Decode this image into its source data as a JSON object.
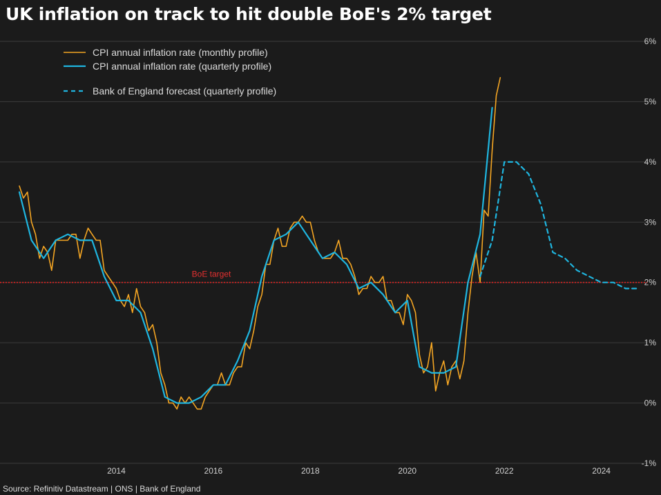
{
  "chart_data": {
    "type": "line",
    "title": "UK inflation on track to hit double BoE's 2% target",
    "xlabel": "",
    "ylabel": "",
    "x_tick_labels": [
      "2014",
      "2016",
      "2018",
      "2020",
      "2022",
      "2024"
    ],
    "y_tick_labels": [
      "6%",
      "5%",
      "4%",
      "3%",
      "2%",
      "1%",
      "0%",
      "-1%"
    ],
    "ylim": [
      -1,
      6
    ],
    "xlim": [
      "2012-01",
      "2024-12"
    ],
    "grid": "horizontal",
    "legend_position": "top-left",
    "reference_line": {
      "label": "BoE target",
      "value": 2,
      "color": "#e0201f"
    },
    "source": "Source: Refinitiv Datastream | ONS | Bank of England",
    "series": [
      {
        "name": "CPI annual inflation rate (monthly profile)",
        "color": "#f5a623",
        "style": "solid",
        "points": [
          [
            "2012-01",
            3.6
          ],
          [
            "2012-02",
            3.4
          ],
          [
            "2012-03",
            3.5
          ],
          [
            "2012-04",
            3.0
          ],
          [
            "2012-05",
            2.8
          ],
          [
            "2012-06",
            2.4
          ],
          [
            "2012-07",
            2.6
          ],
          [
            "2012-08",
            2.5
          ],
          [
            "2012-09",
            2.2
          ],
          [
            "2012-10",
            2.7
          ],
          [
            "2012-11",
            2.7
          ],
          [
            "2012-12",
            2.7
          ],
          [
            "2013-01",
            2.7
          ],
          [
            "2013-02",
            2.8
          ],
          [
            "2013-03",
            2.8
          ],
          [
            "2013-04",
            2.4
          ],
          [
            "2013-05",
            2.7
          ],
          [
            "2013-06",
            2.9
          ],
          [
            "2013-07",
            2.8
          ],
          [
            "2013-08",
            2.7
          ],
          [
            "2013-09",
            2.7
          ],
          [
            "2013-10",
            2.2
          ],
          [
            "2013-11",
            2.1
          ],
          [
            "2013-12",
            2.0
          ],
          [
            "2014-01",
            1.9
          ],
          [
            "2014-02",
            1.7
          ],
          [
            "2014-03",
            1.6
          ],
          [
            "2014-04",
            1.8
          ],
          [
            "2014-05",
            1.5
          ],
          [
            "2014-06",
            1.9
          ],
          [
            "2014-07",
            1.6
          ],
          [
            "2014-08",
            1.5
          ],
          [
            "2014-09",
            1.2
          ],
          [
            "2014-10",
            1.3
          ],
          [
            "2014-11",
            1.0
          ],
          [
            "2014-12",
            0.5
          ],
          [
            "2015-01",
            0.3
          ],
          [
            "2015-02",
            0.0
          ],
          [
            "2015-03",
            0.0
          ],
          [
            "2015-04",
            -0.1
          ],
          [
            "2015-05",
            0.1
          ],
          [
            "2015-06",
            0.0
          ],
          [
            "2015-07",
            0.1
          ],
          [
            "2015-08",
            0.0
          ],
          [
            "2015-09",
            -0.1
          ],
          [
            "2015-10",
            -0.1
          ],
          [
            "2015-11",
            0.1
          ],
          [
            "2015-12",
            0.2
          ],
          [
            "2016-01",
            0.3
          ],
          [
            "2016-02",
            0.3
          ],
          [
            "2016-03",
            0.5
          ],
          [
            "2016-04",
            0.3
          ],
          [
            "2016-05",
            0.3
          ],
          [
            "2016-06",
            0.5
          ],
          [
            "2016-07",
            0.6
          ],
          [
            "2016-08",
            0.6
          ],
          [
            "2016-09",
            1.0
          ],
          [
            "2016-10",
            0.9
          ],
          [
            "2016-11",
            1.2
          ],
          [
            "2016-12",
            1.6
          ],
          [
            "2017-01",
            1.8
          ],
          [
            "2017-02",
            2.3
          ],
          [
            "2017-03",
            2.3
          ],
          [
            "2017-04",
            2.7
          ],
          [
            "2017-05",
            2.9
          ],
          [
            "2017-06",
            2.6
          ],
          [
            "2017-07",
            2.6
          ],
          [
            "2017-08",
            2.9
          ],
          [
            "2017-09",
            3.0
          ],
          [
            "2017-10",
            3.0
          ],
          [
            "2017-11",
            3.1
          ],
          [
            "2017-12",
            3.0
          ],
          [
            "2018-01",
            3.0
          ],
          [
            "2018-02",
            2.7
          ],
          [
            "2018-03",
            2.5
          ],
          [
            "2018-04",
            2.4
          ],
          [
            "2018-05",
            2.4
          ],
          [
            "2018-06",
            2.4
          ],
          [
            "2018-07",
            2.5
          ],
          [
            "2018-08",
            2.7
          ],
          [
            "2018-09",
            2.4
          ],
          [
            "2018-10",
            2.4
          ],
          [
            "2018-11",
            2.3
          ],
          [
            "2018-12",
            2.1
          ],
          [
            "2019-01",
            1.8
          ],
          [
            "2019-02",
            1.9
          ],
          [
            "2019-03",
            1.9
          ],
          [
            "2019-04",
            2.1
          ],
          [
            "2019-05",
            2.0
          ],
          [
            "2019-06",
            2.0
          ],
          [
            "2019-07",
            2.1
          ],
          [
            "2019-08",
            1.7
          ],
          [
            "2019-09",
            1.7
          ],
          [
            "2019-10",
            1.5
          ],
          [
            "2019-11",
            1.5
          ],
          [
            "2019-12",
            1.3
          ],
          [
            "2020-01",
            1.8
          ],
          [
            "2020-02",
            1.7
          ],
          [
            "2020-03",
            1.5
          ],
          [
            "2020-04",
            0.8
          ],
          [
            "2020-05",
            0.5
          ],
          [
            "2020-06",
            0.6
          ],
          [
            "2020-07",
            1.0
          ],
          [
            "2020-08",
            0.2
          ],
          [
            "2020-09",
            0.5
          ],
          [
            "2020-10",
            0.7
          ],
          [
            "2020-11",
            0.3
          ],
          [
            "2020-12",
            0.6
          ],
          [
            "2021-01",
            0.7
          ],
          [
            "2021-02",
            0.4
          ],
          [
            "2021-03",
            0.7
          ],
          [
            "2021-04",
            1.5
          ],
          [
            "2021-05",
            2.1
          ],
          [
            "2021-06",
            2.5
          ],
          [
            "2021-07",
            2.0
          ],
          [
            "2021-08",
            3.2
          ],
          [
            "2021-09",
            3.1
          ],
          [
            "2021-10",
            4.2
          ],
          [
            "2021-11",
            5.1
          ],
          [
            "2021-12",
            5.4
          ]
        ]
      },
      {
        "name": "CPI annual inflation rate (quarterly profile)",
        "color": "#1fb6e0",
        "style": "solid",
        "points": [
          [
            "2012-01",
            3.5
          ],
          [
            "2012-04",
            2.7
          ],
          [
            "2012-07",
            2.4
          ],
          [
            "2012-10",
            2.7
          ],
          [
            "2013-01",
            2.8
          ],
          [
            "2013-04",
            2.7
          ],
          [
            "2013-07",
            2.7
          ],
          [
            "2013-10",
            2.1
          ],
          [
            "2014-01",
            1.7
          ],
          [
            "2014-04",
            1.7
          ],
          [
            "2014-07",
            1.5
          ],
          [
            "2014-10",
            0.9
          ],
          [
            "2015-01",
            0.1
          ],
          [
            "2015-04",
            0.0
          ],
          [
            "2015-07",
            0.0
          ],
          [
            "2015-10",
            0.1
          ],
          [
            "2016-01",
            0.3
          ],
          [
            "2016-04",
            0.3
          ],
          [
            "2016-07",
            0.7
          ],
          [
            "2016-10",
            1.2
          ],
          [
            "2017-01",
            2.1
          ],
          [
            "2017-04",
            2.7
          ],
          [
            "2017-07",
            2.8
          ],
          [
            "2017-10",
            3.0
          ],
          [
            "2018-01",
            2.7
          ],
          [
            "2018-04",
            2.4
          ],
          [
            "2018-07",
            2.5
          ],
          [
            "2018-10",
            2.3
          ],
          [
            "2019-01",
            1.9
          ],
          [
            "2019-04",
            2.0
          ],
          [
            "2019-07",
            1.8
          ],
          [
            "2019-10",
            1.5
          ],
          [
            "2020-01",
            1.7
          ],
          [
            "2020-04",
            0.6
          ],
          [
            "2020-07",
            0.5
          ],
          [
            "2020-10",
            0.5
          ],
          [
            "2021-01",
            0.6
          ],
          [
            "2021-04",
            2.0
          ],
          [
            "2021-07",
            2.8
          ],
          [
            "2021-10",
            4.9
          ]
        ]
      },
      {
        "name": "Bank of England forecast (quarterly profile)",
        "color": "#1fb6e0",
        "style": "dashed",
        "points": [
          [
            "2021-07",
            2.1
          ],
          [
            "2021-10",
            2.7
          ],
          [
            "2022-01",
            4.0
          ],
          [
            "2022-04",
            4.0
          ],
          [
            "2022-07",
            3.8
          ],
          [
            "2022-10",
            3.3
          ],
          [
            "2023-01",
            2.5
          ],
          [
            "2023-04",
            2.4
          ],
          [
            "2023-07",
            2.2
          ],
          [
            "2023-10",
            2.1
          ],
          [
            "2024-01",
            2.0
          ],
          [
            "2024-04",
            2.0
          ],
          [
            "2024-07",
            1.9
          ],
          [
            "2024-10",
            1.9
          ]
        ]
      }
    ]
  }
}
